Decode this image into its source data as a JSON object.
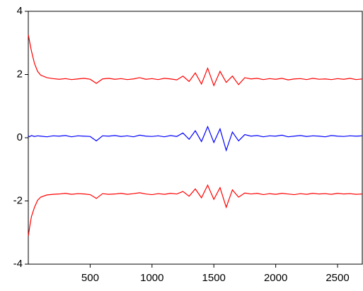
{
  "chart_data": {
    "type": "line",
    "x": [
      1,
      10,
      25,
      50,
      75,
      100,
      150,
      200,
      250,
      300,
      350,
      400,
      450,
      500,
      550,
      600,
      650,
      700,
      750,
      800,
      850,
      900,
      950,
      1000,
      1050,
      1100,
      1150,
      1200,
      1250,
      1300,
      1350,
      1400,
      1450,
      1500,
      1550,
      1600,
      1650,
      1700,
      1750,
      1800,
      1850,
      1900,
      1950,
      2000,
      2050,
      2100,
      2150,
      2200,
      2250,
      2300,
      2350,
      2400,
      2450,
      2500,
      2550,
      2600,
      2650,
      2700
    ],
    "series": [
      {
        "color": "#ff0000",
        "values": [
          3.25,
          3.05,
          2.75,
          2.35,
          2.1,
          1.98,
          1.9,
          1.87,
          1.85,
          1.87,
          1.84,
          1.86,
          1.88,
          1.85,
          1.72,
          1.86,
          1.88,
          1.85,
          1.87,
          1.84,
          1.86,
          1.9,
          1.85,
          1.87,
          1.84,
          1.88,
          1.86,
          1.83,
          1.95,
          1.78,
          2.05,
          1.7,
          2.2,
          1.65,
          2.1,
          1.75,
          1.95,
          1.68,
          1.9,
          1.86,
          1.88,
          1.84,
          1.87,
          1.85,
          1.88,
          1.83,
          1.86,
          1.87,
          1.84,
          1.88,
          1.85,
          1.86,
          1.84,
          1.87,
          1.85,
          1.88,
          1.84,
          1.86
        ]
      },
      {
        "color": "#0000ff",
        "values": [
          0.06,
          0.03,
          0.07,
          0.04,
          0.06,
          0.05,
          0.03,
          0.06,
          0.05,
          0.07,
          0.03,
          0.06,
          0.05,
          0.04,
          -0.1,
          0.06,
          0.05,
          0.07,
          0.04,
          0.06,
          0.03,
          0.08,
          0.05,
          0.04,
          0.06,
          0.03,
          0.07,
          0.04,
          0.15,
          -0.05,
          0.22,
          -0.12,
          0.35,
          -0.15,
          0.28,
          -0.4,
          0.18,
          -0.1,
          0.1,
          0.05,
          0.07,
          0.03,
          0.06,
          0.05,
          0.08,
          0.03,
          0.05,
          0.07,
          0.04,
          0.06,
          0.05,
          0.03,
          0.07,
          0.05,
          0.04,
          0.06,
          0.05,
          0.06
        ]
      },
      {
        "color": "#ff0000",
        "values": [
          -3.1,
          -2.85,
          -2.5,
          -2.2,
          -1.98,
          -1.88,
          -1.81,
          -1.79,
          -1.78,
          -1.76,
          -1.79,
          -1.77,
          -1.78,
          -1.8,
          -1.92,
          -1.77,
          -1.79,
          -1.78,
          -1.76,
          -1.79,
          -1.77,
          -1.74,
          -1.78,
          -1.8,
          -1.77,
          -1.79,
          -1.76,
          -1.78,
          -1.7,
          -1.85,
          -1.62,
          -1.9,
          -1.5,
          -1.95,
          -1.58,
          -2.2,
          -1.65,
          -1.88,
          -1.75,
          -1.78,
          -1.76,
          -1.8,
          -1.77,
          -1.79,
          -1.76,
          -1.78,
          -1.8,
          -1.77,
          -1.79,
          -1.76,
          -1.78,
          -1.77,
          -1.79,
          -1.76,
          -1.78,
          -1.77,
          -1.79,
          -1.78
        ]
      }
    ],
    "xlim": [
      0,
      2700
    ],
    "ylim": [
      -4,
      4
    ],
    "xticks": [
      500,
      1000,
      1500,
      2000,
      2500
    ],
    "yticks": [
      -4,
      -2,
      0,
      2,
      4
    ]
  }
}
